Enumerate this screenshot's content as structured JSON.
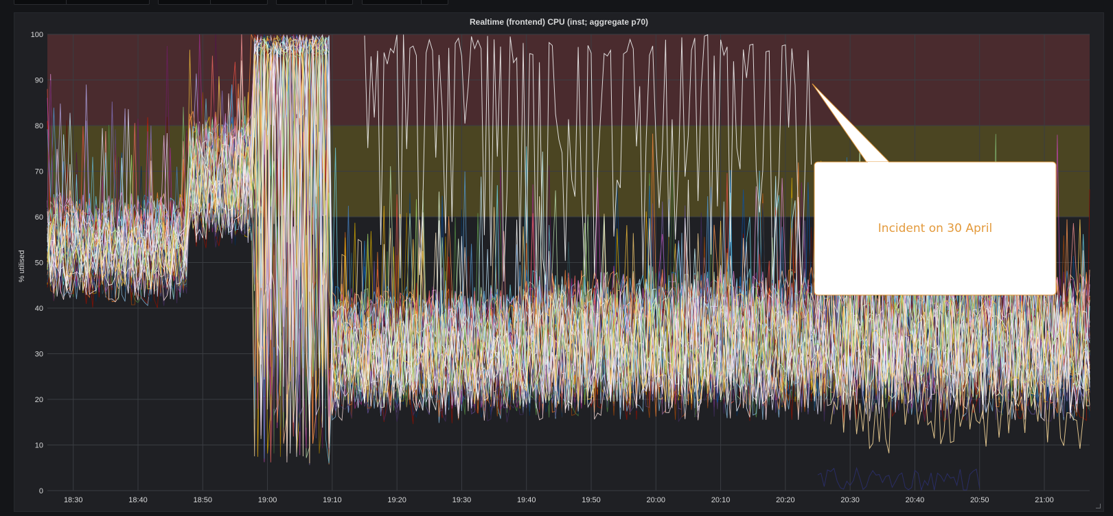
{
  "panel": {
    "title": "Realtime (frontend) CPU (inst; aggregate p70)"
  },
  "annotation": {
    "text": "Incident on 30 April"
  },
  "colors": {
    "background": "#1f2024",
    "critical_band": "#4a2b2e",
    "warning_band": "#4b4522",
    "grid": "#3a3d42",
    "axis_text": "#d8d9da",
    "callout_fill": "#ffffff",
    "callout_border": "#e39a3c",
    "callout_text": "#e39a3c"
  },
  "chart_data": {
    "type": "line",
    "title": "Realtime (frontend) CPU (inst; aggregate p70)",
    "ylabel": "% utilised",
    "xlabel": "",
    "ylim": [
      0,
      100
    ],
    "yticks": [
      0,
      10,
      20,
      30,
      40,
      50,
      60,
      70,
      80,
      90,
      100
    ],
    "xlim": [
      "18:26",
      "21:07"
    ],
    "xticks": [
      "18:30",
      "18:40",
      "18:50",
      "19:00",
      "19:10",
      "19:20",
      "19:30",
      "19:40",
      "19:50",
      "20:00",
      "20:10",
      "20:20",
      "20:30",
      "20:40",
      "20:50",
      "21:00"
    ],
    "grid": true,
    "legend": "none",
    "threshold_bands": [
      {
        "from": 80,
        "to": 100,
        "level": "critical"
      },
      {
        "from": 60,
        "to": 80,
        "level": "warning"
      }
    ],
    "series_count_estimate": 60,
    "phases": [
      {
        "from": "18:26",
        "to": "18:48",
        "typical_range": [
          42,
          65
        ],
        "centre": 53
      },
      {
        "from": "18:48",
        "to": "18:58",
        "typical_range": [
          55,
          85
        ],
        "centre": 68,
        "note": "ramp"
      },
      {
        "from": "18:58",
        "to": "19:10",
        "typical_range": [
          5,
          100
        ],
        "centre": 100,
        "note": "saturated / oscillating"
      },
      {
        "from": "19:10",
        "to": "19:40",
        "typical_range": [
          18,
          48
        ],
        "centre": 30
      },
      {
        "from": "19:40",
        "to": "21:07",
        "typical_range": [
          20,
          55
        ],
        "centre": 32
      }
    ],
    "outliers": [
      {
        "name": "white",
        "from": "19:15",
        "to": "20:24",
        "range": [
          45,
          100
        ]
      },
      {
        "name": "tan",
        "from": "20:27",
        "to": "21:07",
        "range": [
          8,
          30
        ]
      },
      {
        "name": "navy",
        "from": "20:25",
        "to": "20:50",
        "range": [
          0,
          5
        ]
      }
    ]
  }
}
